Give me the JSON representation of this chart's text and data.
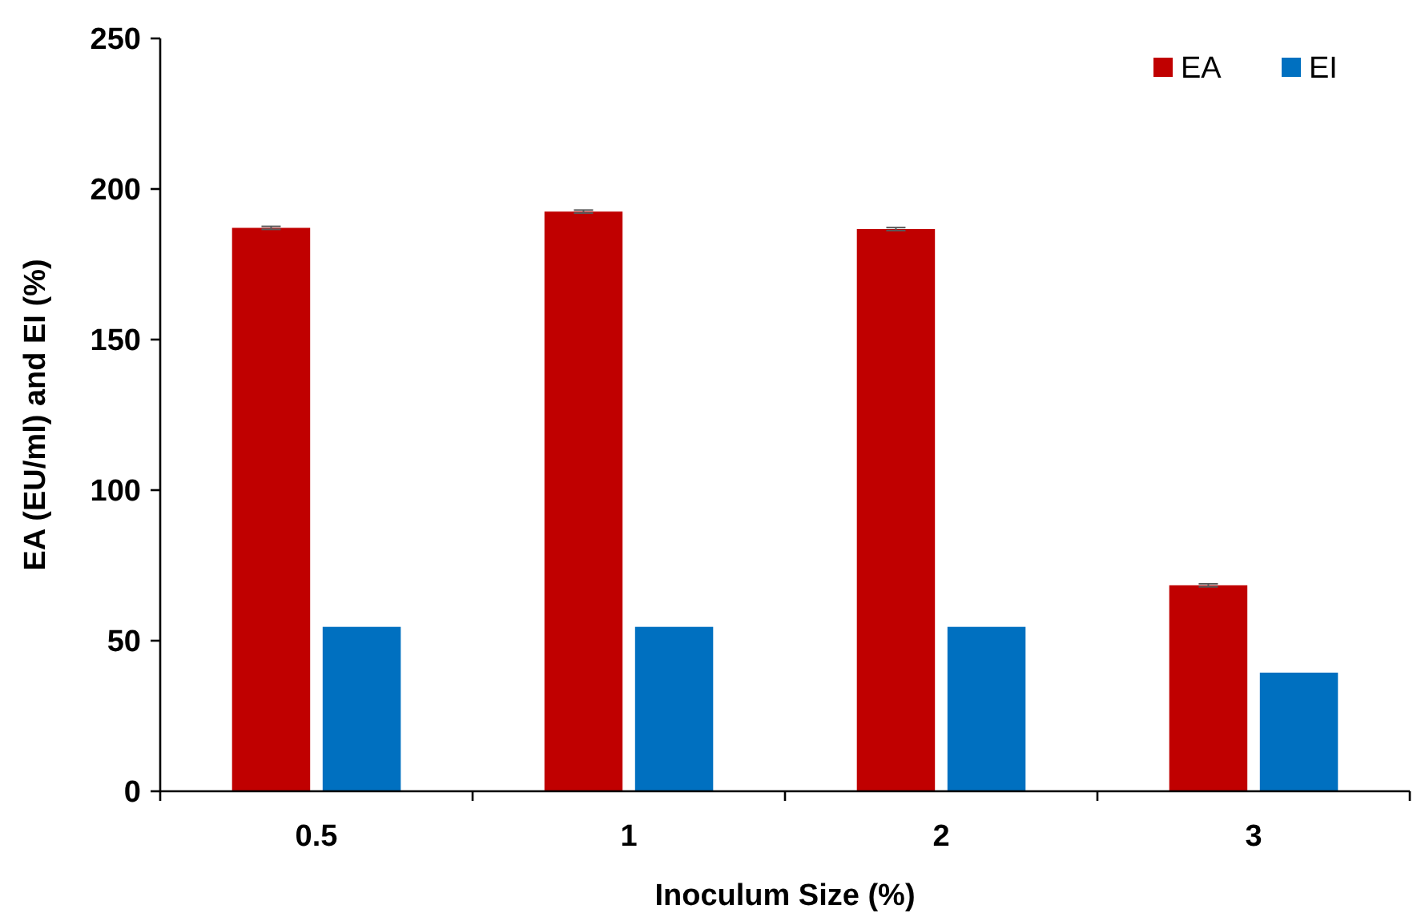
{
  "chart_data": {
    "type": "bar",
    "xlabel": "Inoculum Size (%)",
    "ylabel": "EA (EU/ml) and EI (%)",
    "categories": [
      "0.5",
      "1",
      "2",
      "3"
    ],
    "series": [
      {
        "name": "EA",
        "color": "#c00000",
        "values": [
          187.1,
          192.5,
          186.7,
          68.4
        ],
        "errors": [
          0.5,
          0.5,
          0.5,
          0.5
        ]
      },
      {
        "name": "EI",
        "color": "#0070c0",
        "values": [
          54.6,
          54.6,
          54.6,
          39.4
        ]
      }
    ],
    "ylim": [
      0,
      250
    ],
    "yticks": [
      0,
      50,
      100,
      150,
      200,
      250
    ],
    "grid": false,
    "legend": "top right"
  }
}
